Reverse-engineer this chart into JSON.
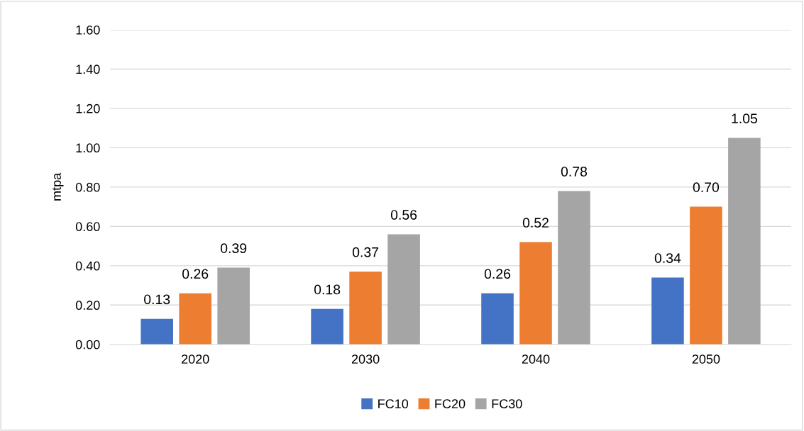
{
  "chart_data": {
    "type": "bar",
    "ylabel": "mtpa",
    "categories": [
      "2020",
      "2030",
      "2040",
      "2050"
    ],
    "series": [
      {
        "name": "FC10",
        "color": "#4472c4",
        "values": [
          0.13,
          0.18,
          0.26,
          0.34
        ],
        "value_labels": [
          "0.13",
          "0.18",
          "0.26",
          "0.34"
        ]
      },
      {
        "name": "FC20",
        "color": "#ed7d31",
        "values": [
          0.26,
          0.37,
          0.52,
          0.7
        ],
        "value_labels": [
          "0.26",
          "0.37",
          "0.52",
          "0.70"
        ]
      },
      {
        "name": "FC30",
        "color": "#a5a5a5",
        "values": [
          0.39,
          0.56,
          0.78,
          1.05
        ],
        "value_labels": [
          "0.39",
          "0.56",
          "0.78",
          "1.05"
        ]
      }
    ],
    "ylim": [
      0,
      1.6
    ],
    "yticks": [
      {
        "value": 0,
        "label": "0.00"
      },
      {
        "value": 0.2,
        "label": "0.20"
      },
      {
        "value": 0.4,
        "label": "0.40"
      },
      {
        "value": 0.6,
        "label": "0.60"
      },
      {
        "value": 0.8,
        "label": "0.80"
      },
      {
        "value": 1.0,
        "label": "1.00"
      },
      {
        "value": 1.2,
        "label": "1.20"
      },
      {
        "value": 1.4,
        "label": "1.40"
      },
      {
        "value": 1.6,
        "label": "1.60"
      }
    ],
    "grid": "y",
    "legend": "bottom"
  }
}
